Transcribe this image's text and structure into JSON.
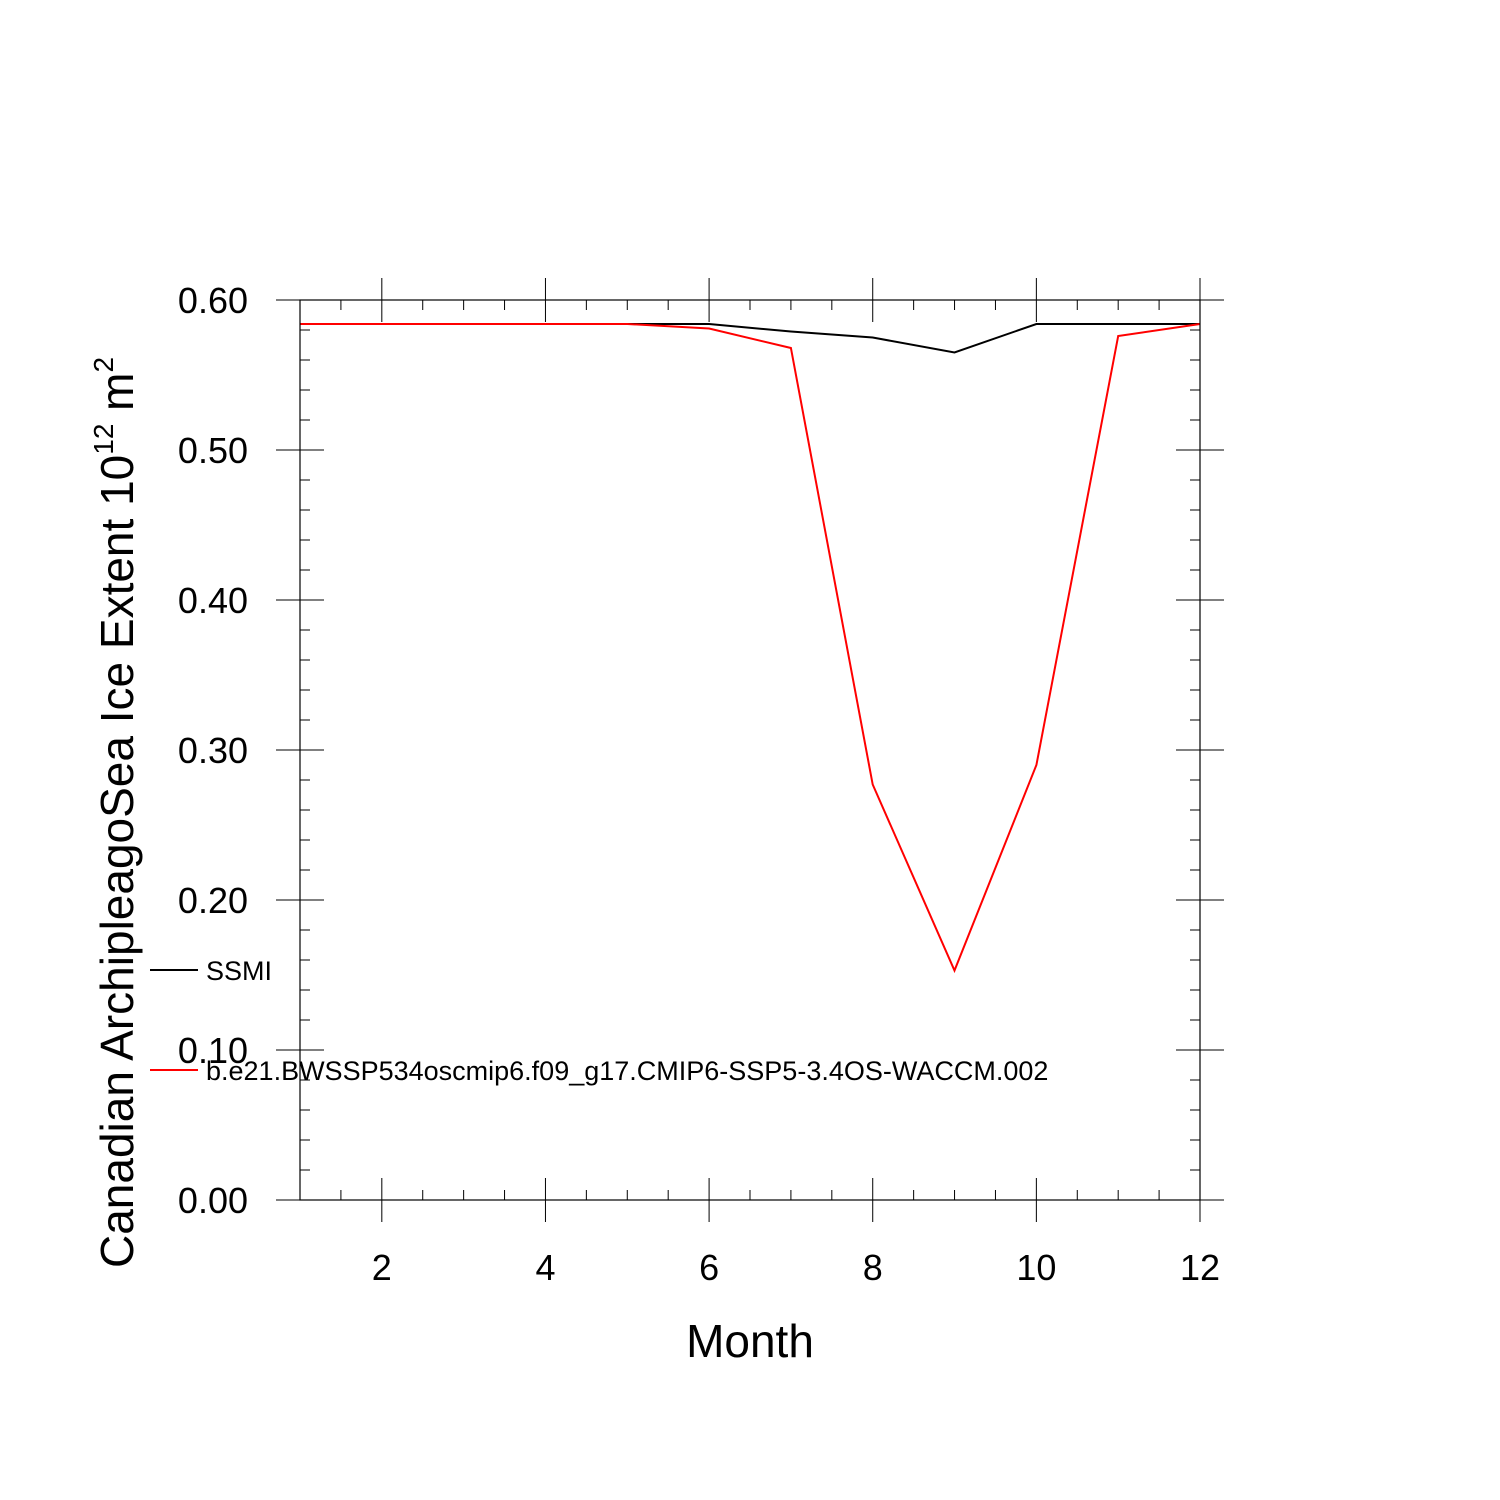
{
  "chart_data": {
    "type": "line",
    "title": "",
    "xlabel": "Month",
    "ylabel": "Canadian ArchipleagoSea Ice Extent 10",
    "ylabel_sup": "12",
    "ylabel_unit_suffix": " m",
    "ylabel_unit_sup": "2",
    "xlim": [
      1,
      12
    ],
    "ylim": [
      0.0,
      0.6
    ],
    "xticks": [
      2,
      4,
      6,
      8,
      10,
      12
    ],
    "xtick_labels": [
      "2",
      "4",
      "6",
      "8",
      "10",
      "12"
    ],
    "yticks": [
      0.0,
      0.1,
      0.2,
      0.3,
      0.4,
      0.5,
      0.6
    ],
    "ytick_labels": [
      "0.00",
      "0.10",
      "0.20",
      "0.30",
      "0.40",
      "0.50",
      "0.60"
    ],
    "x": [
      1,
      2,
      3,
      4,
      5,
      6,
      7,
      8,
      9,
      10,
      11,
      12
    ],
    "grid": false,
    "legend": "inside-left",
    "series": [
      {
        "name": "SSMI",
        "color": "#000000",
        "values": [
          0.584,
          0.584,
          0.584,
          0.584,
          0.584,
          0.584,
          0.579,
          0.575,
          0.565,
          0.584,
          0.584,
          0.584
        ]
      },
      {
        "name": "b.e21.BWSSP534oscmip6.f09_g17.CMIP6-SSP5-3.4OS-WACCM.002",
        "color": "#ff0000",
        "values": [
          0.584,
          0.584,
          0.584,
          0.584,
          0.584,
          0.581,
          0.568,
          0.277,
          0.153,
          0.29,
          0.576,
          0.584
        ]
      }
    ]
  }
}
